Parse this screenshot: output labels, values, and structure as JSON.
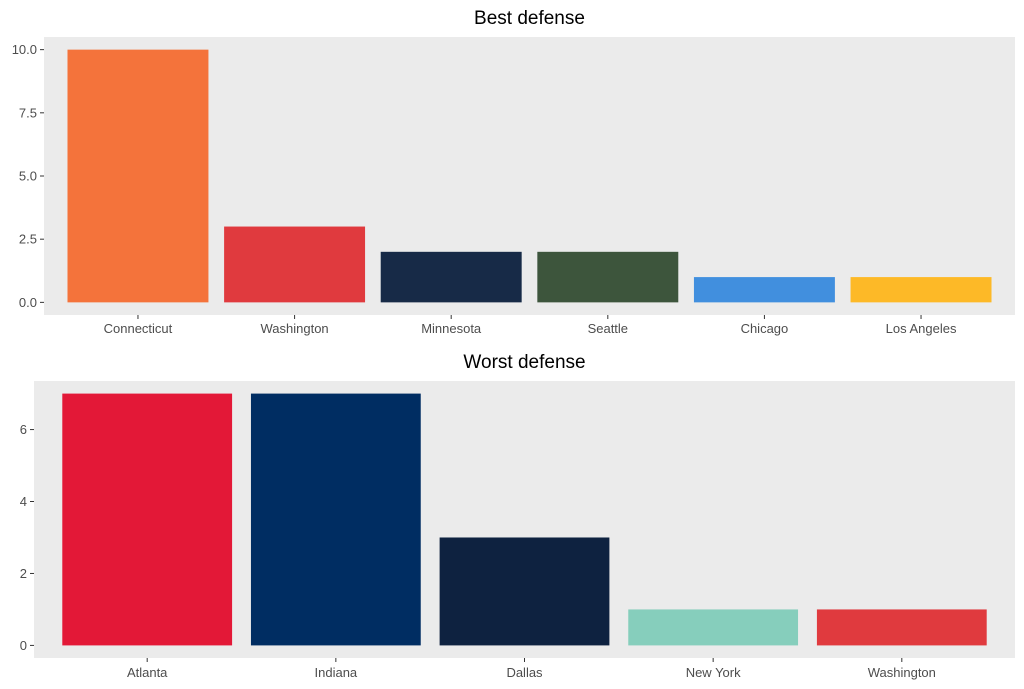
{
  "chart_data": [
    {
      "type": "bar",
      "title": "Best defense",
      "xlabel": "",
      "ylabel": "",
      "categories": [
        "Connecticut",
        "Washington",
        "Minnesota",
        "Seattle",
        "Chicago",
        "Los Angeles"
      ],
      "values": [
        10,
        3,
        2,
        2,
        1,
        1
      ],
      "colors": [
        "#f4733b",
        "#e03a3e",
        "#172a47",
        "#3d553c",
        "#418fde",
        "#fdb927"
      ],
      "yticks": [
        0,
        2.5,
        5,
        7.5,
        10
      ],
      "ytick_labels": [
        "0.0",
        "2.5",
        "5.0",
        "7.5",
        "10.0"
      ],
      "ylim": [
        -0.5,
        10.5
      ],
      "grid": false,
      "legend": "none"
    },
    {
      "type": "bar",
      "title": "Worst defense",
      "xlabel": "",
      "ylabel": "",
      "categories": [
        "Atlanta",
        "Indiana",
        "Dallas",
        "New York",
        "Washington"
      ],
      "values": [
        7,
        7,
        3,
        1,
        1
      ],
      "colors": [
        "#e31837",
        "#002d62",
        "#0e2240",
        "#86cebc",
        "#e03a3e"
      ],
      "yticks": [
        0,
        2,
        4,
        6
      ],
      "ytick_labels": [
        "0",
        "2",
        "4",
        "6"
      ],
      "ylim": [
        -0.35,
        7.35
      ],
      "grid": false,
      "legend": "none"
    }
  ]
}
